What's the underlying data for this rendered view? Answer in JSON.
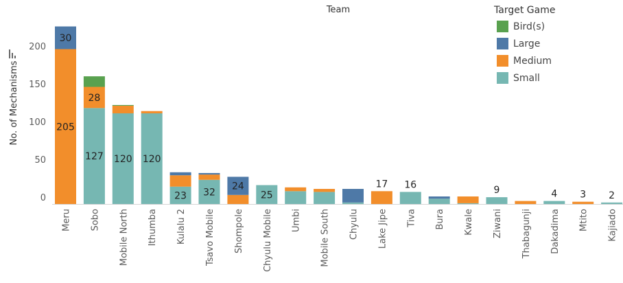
{
  "chart_data": {
    "type": "bar",
    "stacked": true,
    "title": "Team",
    "ylabel": "No. of Mechanisms",
    "ylim": [
      0,
      220
    ],
    "yticks": [
      0,
      50,
      100,
      150,
      200
    ],
    "grid": false,
    "legend": {
      "title": "Target Game",
      "position": "top-right",
      "items": [
        {
          "name": "Bird(s)",
          "color": "#59a14f"
        },
        {
          "name": "Large",
          "color": "#4e79a7"
        },
        {
          "name": "Medium",
          "color": "#f28e2b"
        },
        {
          "name": "Small",
          "color": "#76b7b2"
        }
      ]
    },
    "categories": [
      "Meru",
      "Sobo",
      "Mobile North",
      "Ithumba",
      "Kulalu 2",
      "Tsavo Mobile",
      "Shompole",
      "Chyulu Mobile",
      "Umbi",
      "Mobile South",
      "Chyulu",
      "Lake Jipe",
      "Tiva",
      "Bura",
      "Kwale",
      "Ziwani",
      "Thabagunji",
      "Dakadima",
      "Mtito",
      "Kajiado"
    ],
    "stack_order": [
      "Small",
      "Medium",
      "Large",
      "Bird(s)"
    ],
    "series": [
      {
        "name": "Small",
        "color": "#76b7b2",
        "values": [
          0,
          127,
          120,
          120,
          23,
          32,
          0,
          25,
          17,
          16,
          2,
          0,
          16,
          7,
          1,
          9,
          0,
          4,
          0,
          2
        ]
      },
      {
        "name": "Medium",
        "color": "#f28e2b",
        "values": [
          205,
          28,
          10,
          3,
          15,
          7,
          12,
          0,
          5,
          4,
          0,
          17,
          0,
          0,
          9,
          0,
          4,
          0,
          3,
          0
        ]
      },
      {
        "name": "Large",
        "color": "#4e79a7",
        "values": [
          30,
          0,
          0,
          0,
          4,
          2,
          24,
          0,
          0,
          0,
          18,
          0,
          0,
          3,
          0,
          0,
          0,
          0,
          0,
          0
        ]
      },
      {
        "name": "Bird(s)",
        "color": "#59a14f",
        "values": [
          0,
          14,
          1,
          0,
          0,
          0,
          0,
          0,
          0,
          0,
          0,
          0,
          0,
          0,
          0,
          0,
          0,
          0,
          0,
          0
        ]
      }
    ],
    "data_labels": [
      {
        "category": "Meru",
        "series": "Large",
        "text": "30",
        "place": "inside"
      },
      {
        "category": "Meru",
        "series": "Medium",
        "text": "205",
        "place": "inside"
      },
      {
        "category": "Sobo",
        "series": "Medium",
        "text": "28",
        "place": "inside"
      },
      {
        "category": "Sobo",
        "series": "Small",
        "text": "127",
        "place": "inside"
      },
      {
        "category": "Mobile North",
        "series": "Small",
        "text": "120",
        "place": "inside"
      },
      {
        "category": "Ithumba",
        "series": "Small",
        "text": "120",
        "place": "inside"
      },
      {
        "category": "Kulalu 2",
        "series": "Small",
        "text": "23",
        "place": "inside"
      },
      {
        "category": "Tsavo Mobile",
        "series": "Small",
        "text": "32",
        "place": "inside"
      },
      {
        "category": "Shompole",
        "series": "Large",
        "text": "24",
        "place": "inside"
      },
      {
        "category": "Chyulu Mobile",
        "series": "Small",
        "text": "25",
        "place": "inside"
      },
      {
        "category": "Lake Jipe",
        "series": "Medium",
        "text": "17",
        "place": "above"
      },
      {
        "category": "Tiva",
        "series": "Small",
        "text": "16",
        "place": "above"
      },
      {
        "category": "Ziwani",
        "series": "Small",
        "text": "9",
        "place": "above"
      },
      {
        "category": "Dakadima",
        "series": "Small",
        "text": "4",
        "place": "above"
      },
      {
        "category": "Mtito",
        "series": "Medium",
        "text": "3",
        "place": "above"
      },
      {
        "category": "Kajiado",
        "series": "Small",
        "text": "2",
        "place": "above"
      }
    ]
  }
}
